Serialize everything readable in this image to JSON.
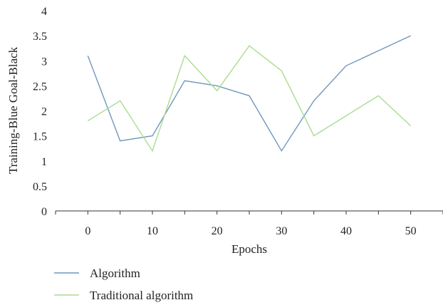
{
  "chart_data": {
    "type": "line",
    "xlabel": "Epochs",
    "ylabel": "Training-Blue Goal-Black",
    "x_ticks": [
      "0",
      "10",
      "20",
      "30",
      "40",
      "50"
    ],
    "y_ticks": [
      "0",
      "0.5",
      "1",
      "1.5",
      "2",
      "2.5",
      "3",
      "3.5",
      "4"
    ],
    "xlim": [
      -5,
      55
    ],
    "ylim": [
      0,
      4
    ],
    "grid": false,
    "legend_position": "bottom-left",
    "x": [
      0,
      5,
      10,
      15,
      20,
      25,
      30,
      35,
      40,
      45,
      50
    ],
    "series": [
      {
        "name": "Algorithm",
        "color": "#6f97bd",
        "values": [
          3.1,
          1.4,
          1.5,
          2.6,
          2.5,
          2.3,
          1.2,
          2.2,
          2.9,
          3.2,
          3.5
        ]
      },
      {
        "name": "Traditional algorithm",
        "color": "#a9dc8e",
        "values": [
          1.8,
          2.2,
          1.2,
          3.1,
          2.4,
          3.3,
          2.8,
          1.5,
          1.9,
          2.3,
          1.7
        ]
      }
    ]
  }
}
